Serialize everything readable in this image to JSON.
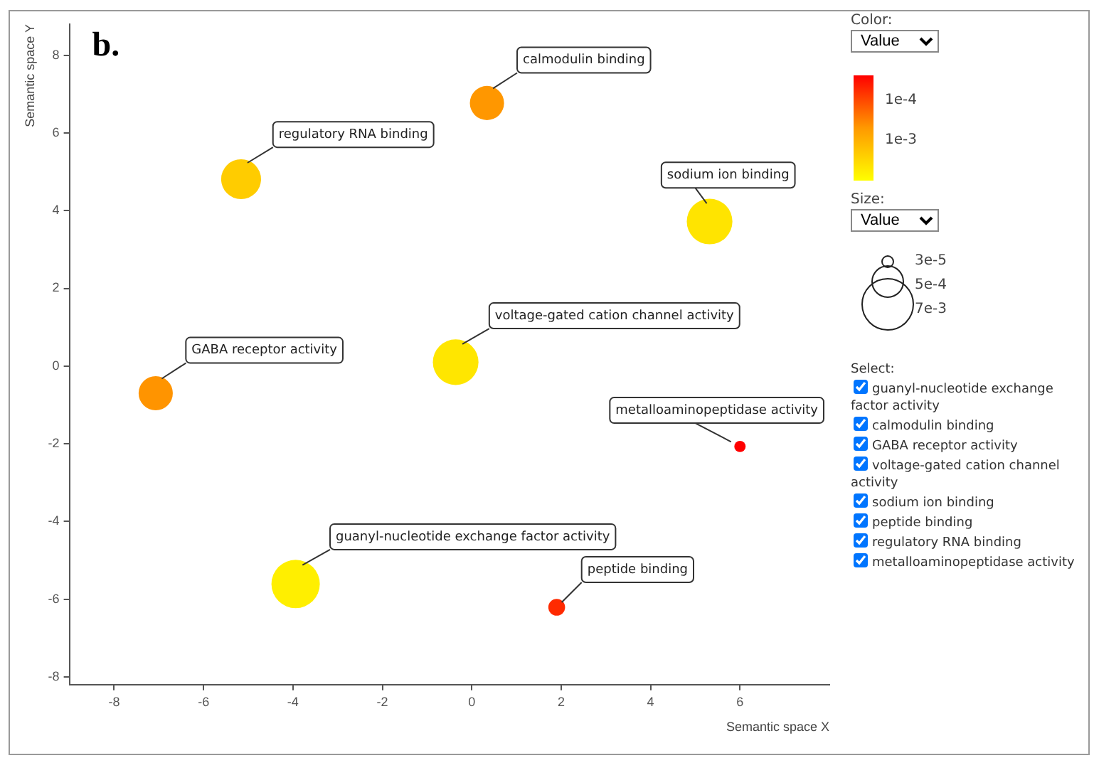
{
  "chart_data": {
    "type": "bubble",
    "title": "b.",
    "xlabel": "Semantic space X",
    "ylabel": "Semantic space Y",
    "xlim": [
      -9,
      8
    ],
    "xticks": [
      -8,
      -6,
      -4,
      -2,
      0,
      2,
      4,
      6
    ],
    "ylim": [
      -8.2,
      8.8
    ],
    "yticks": [
      -8,
      -6,
      -4,
      -2,
      0,
      2,
      4,
      6,
      8
    ],
    "annotations": [
      "Color:",
      "Value",
      "1e-4",
      "1e-3",
      "Size:",
      "Value",
      "3e-5",
      "5e-4",
      "7e-3",
      "Select:"
    ],
    "legend": "right",
    "grid": false,
    "marker": "circle",
    "series": [
      {
        "name": "guanyl-nucleotide exchange factor activity",
        "color": "#ffef00",
        "x": [
          -3.94
        ],
        "values": [
          -5.61
        ],
        "sizes": [
          1
        ]
      },
      {
        "name": "calmodulin binding",
        "color": "#ff9700",
        "x": [
          0.34
        ],
        "values": [
          6.77
        ],
        "sizes": [
          0.5
        ]
      },
      {
        "name": "GABA receptor activity",
        "color": "#ff9400",
        "x": [
          -7.07
        ],
        "values": [
          -0.7
        ],
        "sizes": [
          0.5
        ]
      },
      {
        "name": "voltage-gated cation channel activity",
        "color": "#ffe600",
        "x": [
          -0.36
        ],
        "values": [
          0.1
        ],
        "sizes": [
          0.89
        ]
      },
      {
        "name": "sodium ion binding",
        "color": "#ffe400",
        "x": [
          5.32
        ],
        "values": [
          3.72
        ],
        "sizes": [
          0.89
        ]
      },
      {
        "name": "peptide binding",
        "color": "#ff2a00",
        "x": [
          1.9
        ],
        "values": [
          -6.21
        ],
        "sizes": [
          0.12
        ]
      },
      {
        "name": "regulatory RNA binding",
        "color": "#ffcc00",
        "x": [
          -5.16
        ],
        "values": [
          4.81
        ],
        "sizes": [
          0.68
        ]
      },
      {
        "name": "metalloaminopeptidase activity",
        "color": "#ff0000",
        "x": [
          6.0
        ],
        "values": [
          -2.07
        ],
        "sizes": [
          0.055
        ]
      }
    ]
  }
}
